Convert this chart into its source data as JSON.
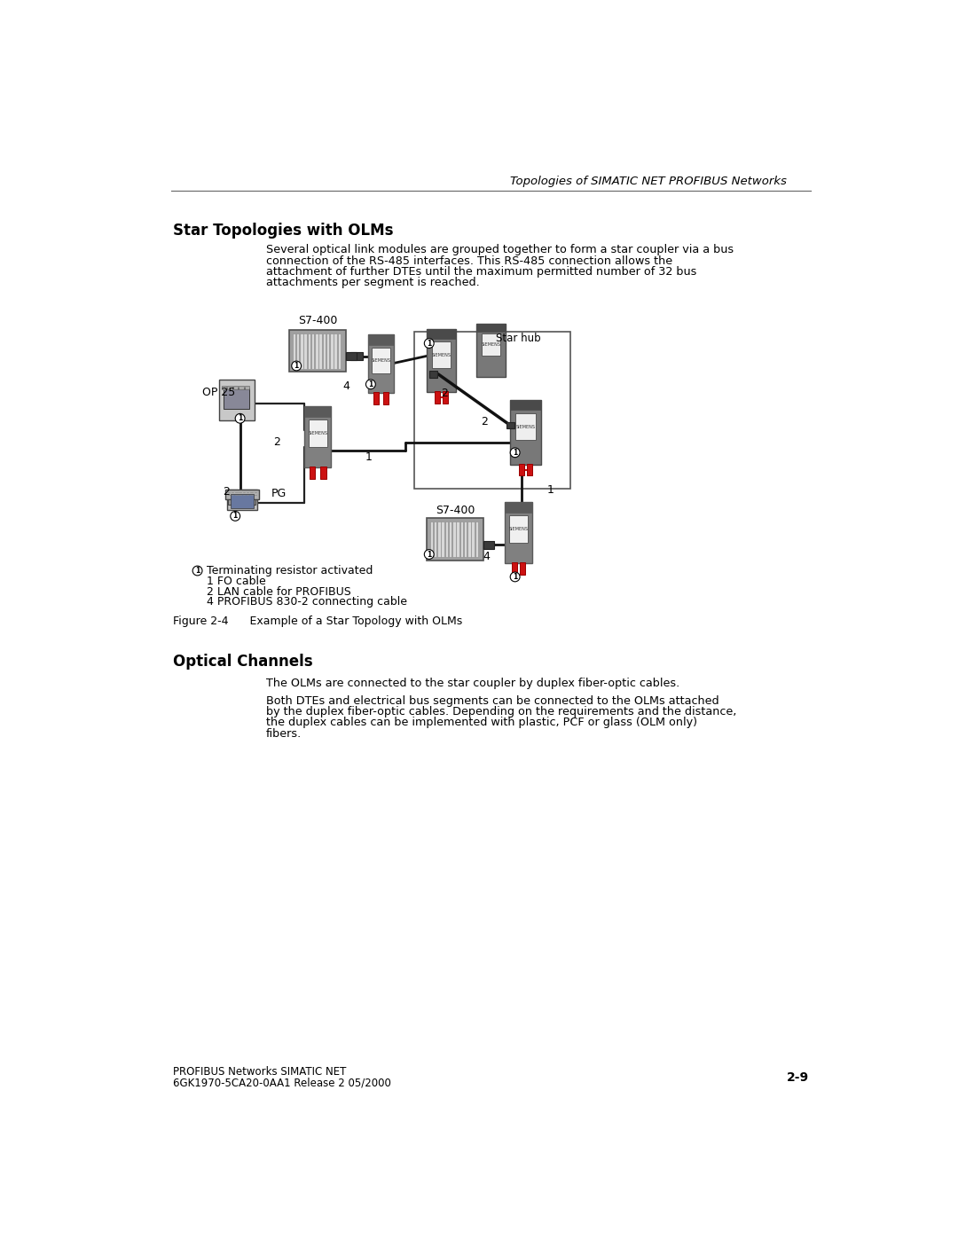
{
  "page_title": "Topologies of SIMATIC NET PROFIBUS Networks",
  "section_title": "Star Topologies with OLMs",
  "section_body": "Several optical link modules are grouped together to form a star coupler via a bus\nconnection of the RS-485 interfaces. This RS-485 connection allows the\nattachment of further DTEs until the maximum permitted number of 32 bus\nattachments per segment is reached.",
  "section2_title": "Optical Channels",
  "section2_body1": "The OLMs are connected to the star coupler by duplex fiber-optic cables.",
  "section2_body2": "Both DTEs and electrical bus segments can be connected to the OLMs attached\nby the duplex fiber-optic cables. Depending on the requirements and the distance,\nthe duplex cables can be implemented with plastic, PCF or glass (OLM only)\nfibers.",
  "figure_caption": "Figure 2-4      Example of a Star Topology with OLMs",
  "footer_left1": "PROFIBUS Networks SIMATIC NET",
  "footer_left2": "6GK1970-5CA20-0AA1 Release 2 05/2000",
  "footer_right": "2-9",
  "bg_color": "#ffffff",
  "text_color": "#000000"
}
